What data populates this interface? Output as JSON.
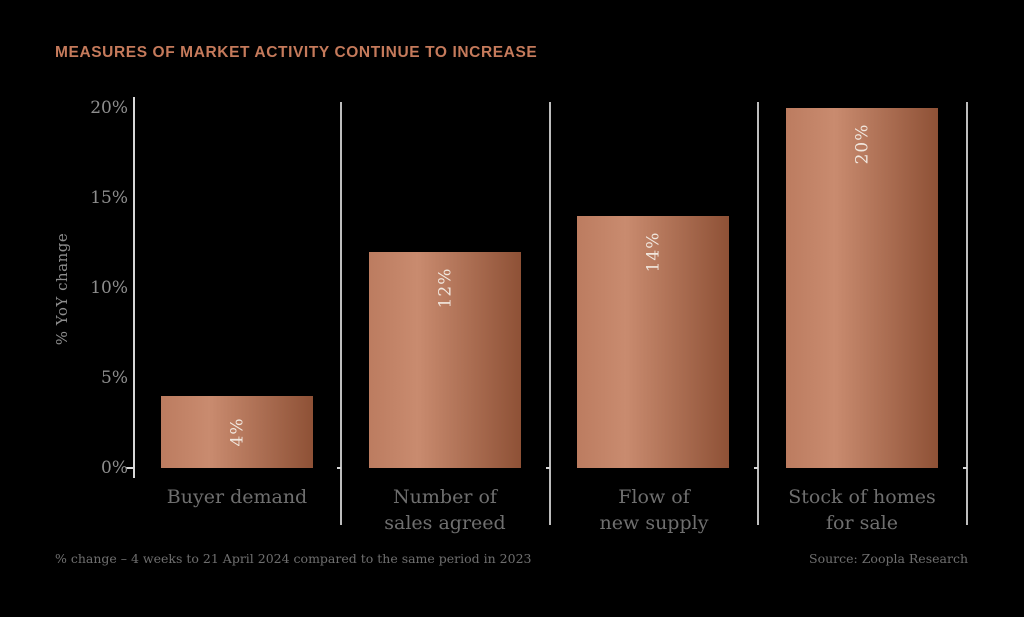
{
  "title": "MEASURES OF MARKET ACTIVITY CONTINUE TO INCREASE",
  "footnote": "% change – 4 weeks to 21 April 2024 compared to the same period in 2023",
  "source": "Source: Zoopla Research",
  "chart_data": {
    "type": "bar",
    "title": "MEASURES OF MARKET ACTIVITY CONTINUE TO INCREASE",
    "xlabel": "",
    "ylabel": "% YoY change",
    "categories": [
      "Buyer demand",
      "Number of sales agreed",
      "Flow of new supply",
      "Stock of homes for sale"
    ],
    "categories_lines": [
      [
        "Buyer demand",
        ""
      ],
      [
        "Number of",
        "sales agreed"
      ],
      [
        "Flow of",
        "new supply"
      ],
      [
        "Stock of homes",
        "for sale"
      ]
    ],
    "values": [
      4,
      12,
      14,
      20
    ],
    "bar_labels": [
      "4%",
      "12%",
      "14%",
      "20%"
    ],
    "yticks": [
      20,
      15,
      10,
      5,
      0
    ],
    "ytick_labels": [
      "20%",
      "15%",
      "10%",
      "5%",
      "0%"
    ],
    "ylim": [
      0,
      20
    ],
    "grid": false,
    "legend": null,
    "bar_label_rotation_deg": -90,
    "colors": {
      "background": "#000000",
      "bar_gradient_start": "#bc7c60",
      "bar_gradient_mid": "#c98b6f",
      "bar_gradient_end": "#8e5136",
      "bar_label": "#f1e7de",
      "title": "#c57a5b",
      "axis_line": "#d9d9d9",
      "separator_line": "#bdbdbd",
      "tick_label": "#8e8e8e",
      "category_label": "#6f6f6f",
      "footnote": "#6f6f6f"
    }
  }
}
